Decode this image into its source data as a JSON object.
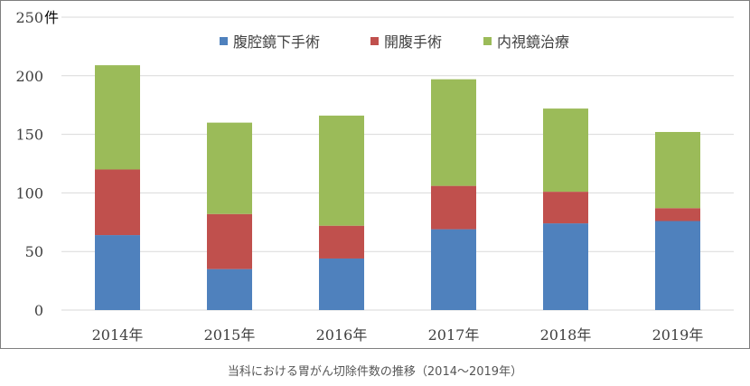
{
  "chart_data": {
    "type": "bar",
    "stacked": true,
    "y_unit": "件",
    "ylim": [
      0,
      250
    ],
    "y_ticks": [
      "0",
      "50",
      "100",
      "150",
      "200",
      "250"
    ],
    "categories": [
      "2014年",
      "2015年",
      "2016年",
      "2017年",
      "2018年",
      "2019年"
    ],
    "series": [
      {
        "name": "腹腔鏡下手術",
        "color": "#4f81bd",
        "values": [
          64,
          35,
          44,
          69,
          74,
          76
        ]
      },
      {
        "name": "開腹手術",
        "color": "#c0504d",
        "values": [
          56,
          47,
          28,
          37,
          27,
          11
        ]
      },
      {
        "name": "内視鏡治療",
        "color": "#9bbb59",
        "values": [
          89,
          78,
          94,
          91,
          71,
          65
        ]
      }
    ],
    "grid": true,
    "legend_position": "top-right"
  },
  "caption": "当科における胃がん切除件数の推移（2014〜2019年）"
}
